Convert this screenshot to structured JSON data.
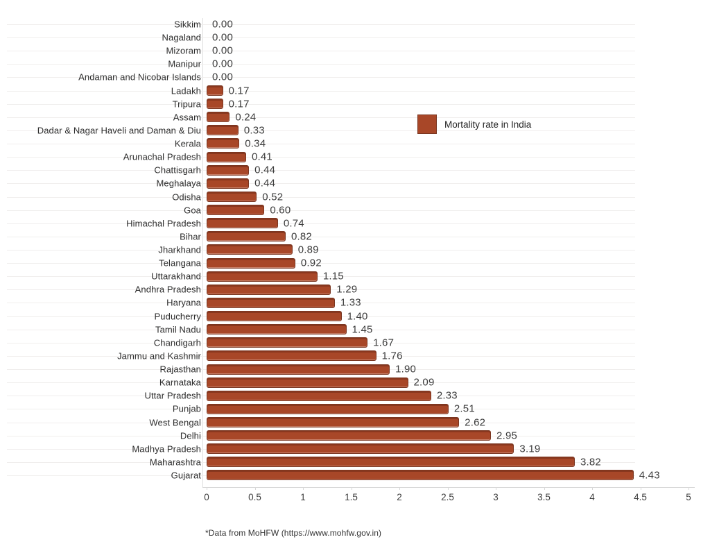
{
  "chart_data": {
    "type": "bar",
    "orientation": "horizontal",
    "legend": "Mortality rate in India",
    "legend_position": "middle-right",
    "footnote": "*Data from MoHFW (https://www.mohfw.gov.in)",
    "bar_color": "#a84728",
    "bar_border_color": "#7a3621",
    "grid": true,
    "xlim": [
      0,
      5
    ],
    "x_ticks": [
      "0",
      "0.5",
      "1",
      "1.5",
      "2",
      "2.5",
      "3",
      "3.5",
      "4",
      "4.5",
      "5"
    ],
    "xlabel": "",
    "ylabel": "",
    "categories": [
      "Sikkim",
      "Nagaland",
      "Mizoram",
      "Manipur",
      "Andaman and Nicobar Islands",
      "Ladakh",
      "Tripura",
      "Assam",
      "Dadar & Nagar Haveli and Daman & Diu",
      "Kerala",
      "Arunachal Pradesh",
      "Chattisgarh",
      "Meghalaya",
      "Odisha",
      "Goa",
      "Himachal Pradesh",
      "Bihar",
      "Jharkhand",
      "Telangana",
      "Uttarakhand",
      "Andhra Pradesh",
      "Haryana",
      "Puducherry",
      "Tamil Nadu",
      "Chandigarh",
      "Jammu and Kashmir",
      "Rajasthan",
      "Karnataka",
      "Uttar Pradesh",
      "Punjab",
      "West Bengal",
      "Delhi",
      "Madhya Pradesh",
      "Maharashtra",
      "Gujarat"
    ],
    "values": [
      0.0,
      0.0,
      0.0,
      0.0,
      0.0,
      0.17,
      0.17,
      0.24,
      0.33,
      0.34,
      0.41,
      0.44,
      0.44,
      0.52,
      0.6,
      0.74,
      0.82,
      0.89,
      0.92,
      1.15,
      1.29,
      1.33,
      1.4,
      1.45,
      1.67,
      1.76,
      1.9,
      2.09,
      2.33,
      2.51,
      2.62,
      2.95,
      3.19,
      3.82,
      4.43
    ],
    "value_labels": [
      "0.00",
      "0.00",
      "0.00",
      "0.00",
      "0.00",
      "0.17",
      "0.17",
      "0.24",
      "0.33",
      "0.34",
      "0.41",
      "0.44",
      "0.44",
      "0.52",
      "0.60",
      "0.74",
      "0.82",
      "0.89",
      "0.92",
      "1.15",
      "1.29",
      "1.33",
      "1.40",
      "1.45",
      "1.67",
      "1.76",
      "1.90",
      "2.09",
      "2.33",
      "2.51",
      "2.62",
      "2.95",
      "3.19",
      "3.82",
      "4.43"
    ]
  }
}
